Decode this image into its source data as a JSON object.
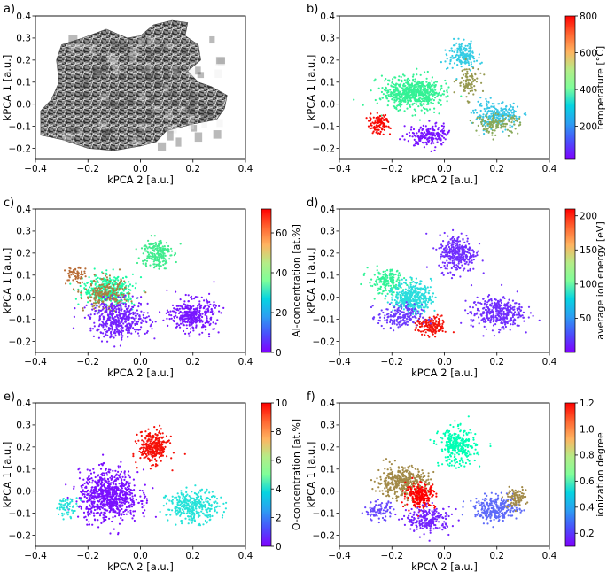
{
  "figure": {
    "panels": [
      {
        "letter": "a)",
        "xlabel": "kPCA 2 [a.u.]",
        "ylabel": "kPCA 1 [a.u.]",
        "kind": "images"
      },
      {
        "letter": "b)",
        "xlabel": "kPCA 2 [a.u.]",
        "ylabel": "kPCA 1 [a.u.]",
        "kind": "scatter",
        "colorbar_label": "temperature [°C]",
        "cb_ticks": [
          "200",
          "400",
          "600",
          "800"
        ],
        "cmap": "rainbow"
      },
      {
        "letter": "c)",
        "xlabel": "kPCA 2 [a.u.]",
        "ylabel": "kPCA 1 [a.u.]",
        "kind": "scatter",
        "colorbar_label": "Al-concentration [at.%]",
        "cb_ticks": [
          "0",
          "20",
          "40",
          "60"
        ],
        "cmap": "rainbow"
      },
      {
        "letter": "d)",
        "xlabel": "kPCA 2 [a.u.]",
        "ylabel": "kPCA 1 [a.u.]",
        "kind": "scatter",
        "colorbar_label": "average ion energy [eV]",
        "cb_ticks": [
          "50",
          "100",
          "150",
          "200"
        ],
        "cmap": "rainbow"
      },
      {
        "letter": "e)",
        "xlabel": "kPCA 2 [a.u.]",
        "ylabel": "kPCA 1 [a.u.]",
        "kind": "scatter",
        "colorbar_label": "O-concentration [at.%]",
        "cb_ticks": [
          "0",
          "2",
          "4",
          "6",
          "8",
          "10"
        ],
        "cmap": "rainbow"
      },
      {
        "letter": "f)",
        "xlabel": "kPCA 2 [a.u.]",
        "ylabel": "kPCA 1 [a.u.]",
        "kind": "scatter",
        "colorbar_label": "ionization degree",
        "cb_ticks": [
          "0.2",
          "0.4",
          "0.6",
          "0.8",
          "1.0",
          "1.2"
        ],
        "cmap": "rainbow"
      }
    ]
  },
  "chart_data": [
    {
      "panel": "a",
      "type": "scatter",
      "title": "",
      "xlabel": "kPCA 2 [a.u.]",
      "ylabel": "kPCA 1 [a.u.]",
      "xlim": [
        -0.4,
        0.4
      ],
      "ylim": [
        -0.25,
        0.4
      ],
      "xticks": [
        "−0.4",
        "−0.2",
        "0.0",
        "0.2",
        "0.4"
      ],
      "yticks": [
        "−0.2",
        "−0.1",
        "0.0",
        "0.1",
        "0.2",
        "0.3",
        "0.4"
      ],
      "note_marks": "grayscale image thumbnails at embedding positions"
    },
    {
      "panel": "b",
      "type": "scatter",
      "xlabel": "kPCA 2 [a.u.]",
      "ylabel": "kPCA 1 [a.u.]",
      "xlim": [
        -0.4,
        0.4
      ],
      "ylim": [
        -0.25,
        0.4
      ],
      "xticks": [
        "−0.4",
        "−0.2",
        "0.0",
        "0.2",
        "0.4"
      ],
      "yticks": [
        "−0.2",
        "−0.1",
        "0.0",
        "0.1",
        "0.2",
        "0.3",
        "0.4"
      ],
      "color_variable": "temperature [°C]",
      "clim": [
        20,
        800
      ],
      "clusters": [
        {
          "center": [
            -0.12,
            0.05
          ],
          "spread": [
            0.08,
            0.05
          ],
          "n": 650,
          "value": 490
        },
        {
          "center": [
            -0.25,
            -0.09
          ],
          "spread": [
            0.03,
            0.03
          ],
          "n": 110,
          "value": 790
        },
        {
          "center": [
            -0.06,
            -0.14
          ],
          "spread": [
            0.05,
            0.035
          ],
          "n": 200,
          "value": 40
        },
        {
          "center": [
            0.07,
            0.22
          ],
          "spread": [
            0.04,
            0.04
          ],
          "n": 170,
          "value": 250
        },
        {
          "center": [
            0.09,
            0.1
          ],
          "spread": [
            0.03,
            0.05
          ],
          "n": 90,
          "value": 640
        },
        {
          "center": [
            0.2,
            -0.05
          ],
          "spread": [
            0.06,
            0.04
          ],
          "n": 220,
          "value": 240
        },
        {
          "center": [
            0.2,
            -0.09
          ],
          "spread": [
            0.06,
            0.03
          ],
          "n": 130,
          "value": 620
        }
      ]
    },
    {
      "panel": "c",
      "type": "scatter",
      "xlabel": "kPCA 2 [a.u.]",
      "ylabel": "kPCA 1 [a.u.]",
      "xlim": [
        -0.4,
        0.4
      ],
      "ylim": [
        -0.25,
        0.4
      ],
      "xticks": [
        "−0.4",
        "−0.2",
        "0.0",
        "0.2",
        "0.4"
      ],
      "yticks": [
        "−0.2",
        "−0.1",
        "0.0",
        "0.1",
        "0.2",
        "0.3",
        "0.4"
      ],
      "color_variable": "Al-concentration [at.%]",
      "clim": [
        0,
        72
      ],
      "clusters": [
        {
          "center": [
            -0.12,
            0.03
          ],
          "spread": [
            0.07,
            0.05
          ],
          "n": 380,
          "value": 40
        },
        {
          "center": [
            -0.13,
            0.01
          ],
          "spread": [
            0.06,
            0.05
          ],
          "n": 200,
          "value": 60
        },
        {
          "center": [
            -0.25,
            0.1
          ],
          "spread": [
            0.03,
            0.03
          ],
          "n": 60,
          "value": 62
        },
        {
          "center": [
            -0.08,
            -0.1
          ],
          "spread": [
            0.08,
            0.06
          ],
          "n": 450,
          "value": 3
        },
        {
          "center": [
            0.06,
            0.2
          ],
          "spread": [
            0.04,
            0.05
          ],
          "n": 200,
          "value": 45
        },
        {
          "center": [
            0.2,
            -0.08
          ],
          "spread": [
            0.06,
            0.05
          ],
          "n": 360,
          "value": 2
        }
      ]
    },
    {
      "panel": "d",
      "type": "scatter",
      "xlabel": "kPCA 2 [a.u.]",
      "ylabel": "kPCA 1 [a.u.]",
      "xlim": [
        -0.4,
        0.4
      ],
      "ylim": [
        -0.25,
        0.4
      ],
      "xticks": [
        "−0.4",
        "−0.2",
        "0.0",
        "0.2",
        "0.4"
      ],
      "yticks": [
        "−0.2",
        "−0.1",
        "0.0",
        "0.1",
        "0.2",
        "0.3",
        "0.4"
      ],
      "color_variable": "average ion energy [eV]",
      "clim": [
        0,
        210
      ],
      "clusters": [
        {
          "center": [
            -0.22,
            0.07
          ],
          "spread": [
            0.05,
            0.04
          ],
          "n": 170,
          "value": 125
        },
        {
          "center": [
            -0.12,
            0.0
          ],
          "spread": [
            0.05,
            0.05
          ],
          "n": 400,
          "value": 70
        },
        {
          "center": [
            -0.05,
            -0.13
          ],
          "spread": [
            0.04,
            0.03
          ],
          "n": 160,
          "value": 205
        },
        {
          "center": [
            -0.17,
            -0.09
          ],
          "spread": [
            0.06,
            0.04
          ],
          "n": 180,
          "value": 15
        },
        {
          "center": [
            0.05,
            0.2
          ],
          "spread": [
            0.05,
            0.06
          ],
          "n": 320,
          "value": 12
        },
        {
          "center": [
            0.2,
            -0.07
          ],
          "spread": [
            0.07,
            0.05
          ],
          "n": 360,
          "value": 12
        }
      ]
    },
    {
      "panel": "e",
      "type": "scatter",
      "xlabel": "kPCA 2 [a.u.]",
      "ylabel": "kPCA 1 [a.u.]",
      "xlim": [
        -0.4,
        0.4
      ],
      "ylim": [
        -0.25,
        0.4
      ],
      "xticks": [
        "−0.4",
        "−0.2",
        "0.0",
        "0.2",
        "0.4"
      ],
      "yticks": [
        "−0.2",
        "−0.1",
        "0.0",
        "0.1",
        "0.2",
        "0.3",
        "0.4"
      ],
      "color_variable": "O-concentration [at.%]",
      "clim": [
        0,
        10
      ],
      "clusters": [
        {
          "center": [
            -0.12,
            -0.02
          ],
          "spread": [
            0.08,
            0.08
          ],
          "n": 800,
          "value": 0.2
        },
        {
          "center": [
            0.05,
            0.2
          ],
          "spread": [
            0.04,
            0.05
          ],
          "n": 300,
          "value": 9.8
        },
        {
          "center": [
            0.2,
            -0.07
          ],
          "spread": [
            0.07,
            0.05
          ],
          "n": 330,
          "value": 3.5
        },
        {
          "center": [
            -0.28,
            -0.07
          ],
          "spread": [
            0.03,
            0.03
          ],
          "n": 60,
          "value": 3.5
        }
      ]
    },
    {
      "panel": "f",
      "type": "scatter",
      "xlabel": "kPCA 2 [a.u.]",
      "ylabel": "kPCA 1 [a.u.]",
      "xlim": [
        -0.4,
        0.4
      ],
      "ylim": [
        -0.25,
        0.4
      ],
      "xticks": [
        "−0.4",
        "−0.2",
        "0.0",
        "0.2",
        "0.4"
      ],
      "yticks": [
        "−0.2",
        "−0.1",
        "0.0",
        "0.1",
        "0.2",
        "0.3",
        "0.4"
      ],
      "color_variable": "ionization degree",
      "clim": [
        0.1,
        1.2
      ],
      "clusters": [
        {
          "center": [
            -0.16,
            0.04
          ],
          "spread": [
            0.07,
            0.05
          ],
          "n": 400,
          "value": 1.0
        },
        {
          "center": [
            -0.09,
            -0.02
          ],
          "spread": [
            0.04,
            0.04
          ],
          "n": 220,
          "value": 1.2
        },
        {
          "center": [
            -0.06,
            -0.13
          ],
          "spread": [
            0.06,
            0.04
          ],
          "n": 220,
          "value": 0.15
        },
        {
          "center": [
            -0.25,
            -0.09
          ],
          "spread": [
            0.04,
            0.03
          ],
          "n": 90,
          "value": 0.2
        },
        {
          "center": [
            0.05,
            0.2
          ],
          "spread": [
            0.05,
            0.06
          ],
          "n": 300,
          "value": 0.65
        },
        {
          "center": [
            0.2,
            -0.08
          ],
          "spread": [
            0.06,
            0.04
          ],
          "n": 280,
          "value": 0.25
        },
        {
          "center": [
            0.27,
            -0.03
          ],
          "spread": [
            0.03,
            0.03
          ],
          "n": 90,
          "value": 1.0
        }
      ]
    }
  ]
}
